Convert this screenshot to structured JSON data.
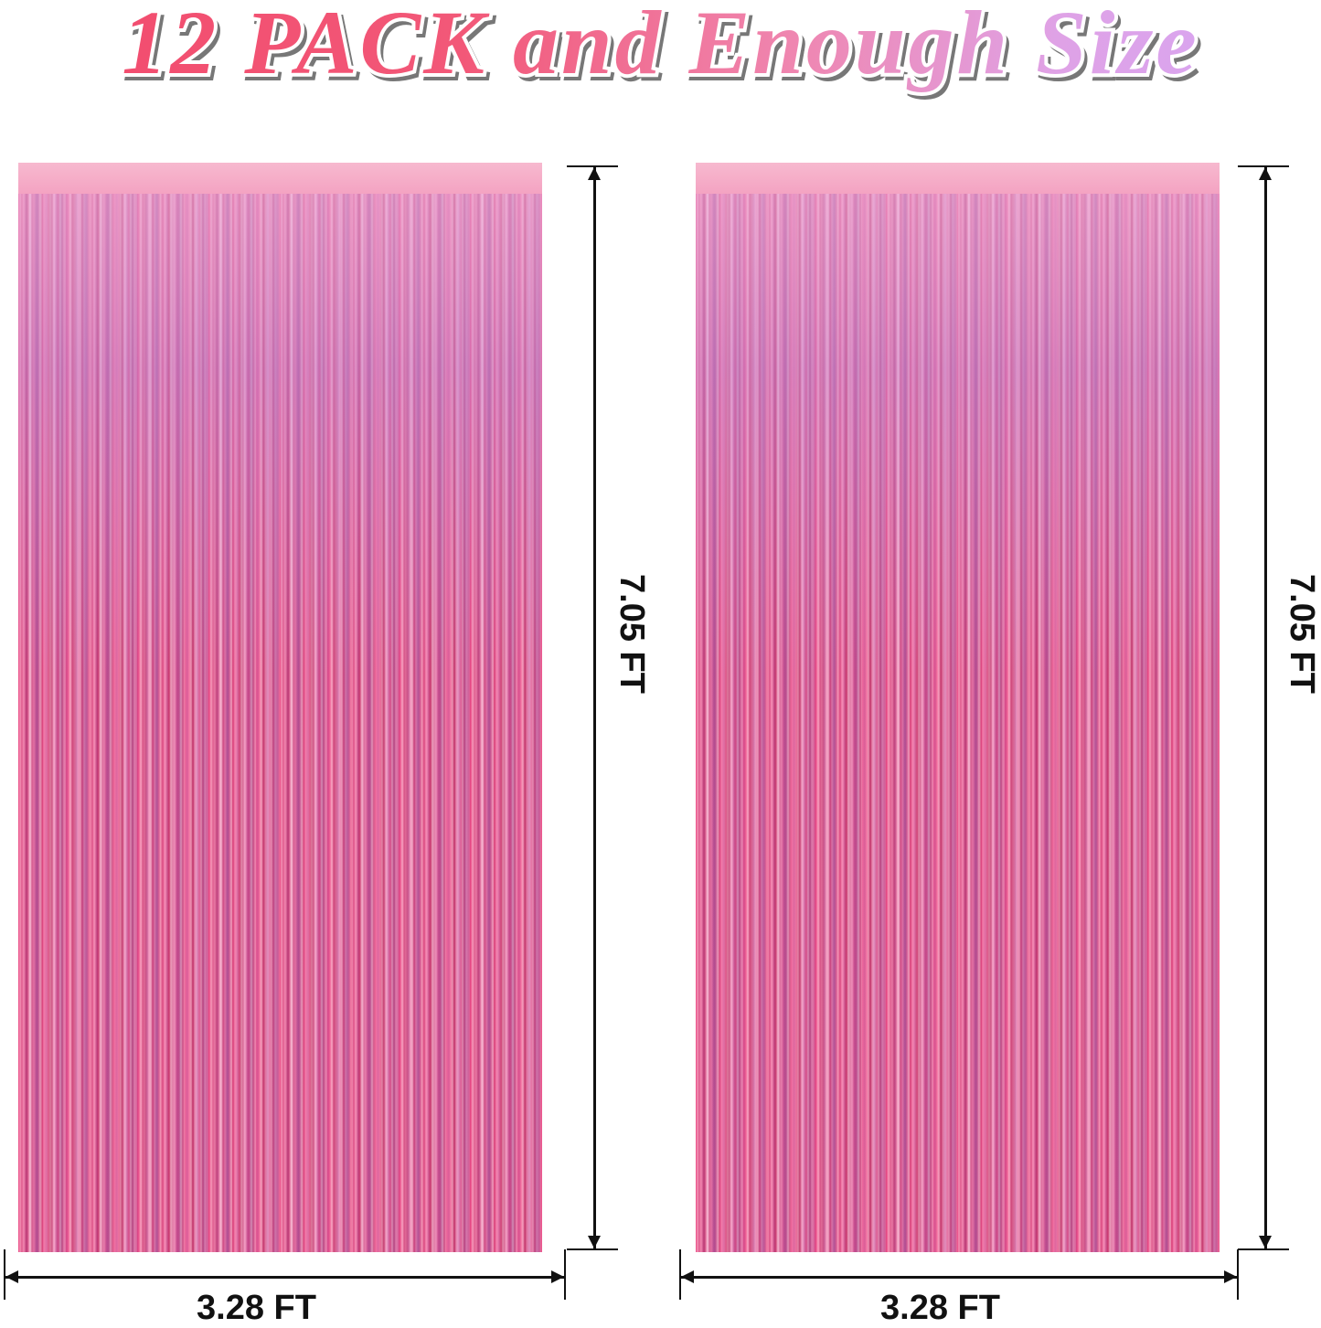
{
  "title": "12 PACK and Enough Size",
  "colors": {
    "title_start": "#f24a6c",
    "title_end": "#d6a6f5",
    "curtain": "#e5507f"
  },
  "panels": [
    {
      "width_label": "3.28 FT",
      "height_label": "7.05 FT"
    },
    {
      "width_label": "3.28 FT",
      "height_label": "7.05 FT"
    }
  ]
}
